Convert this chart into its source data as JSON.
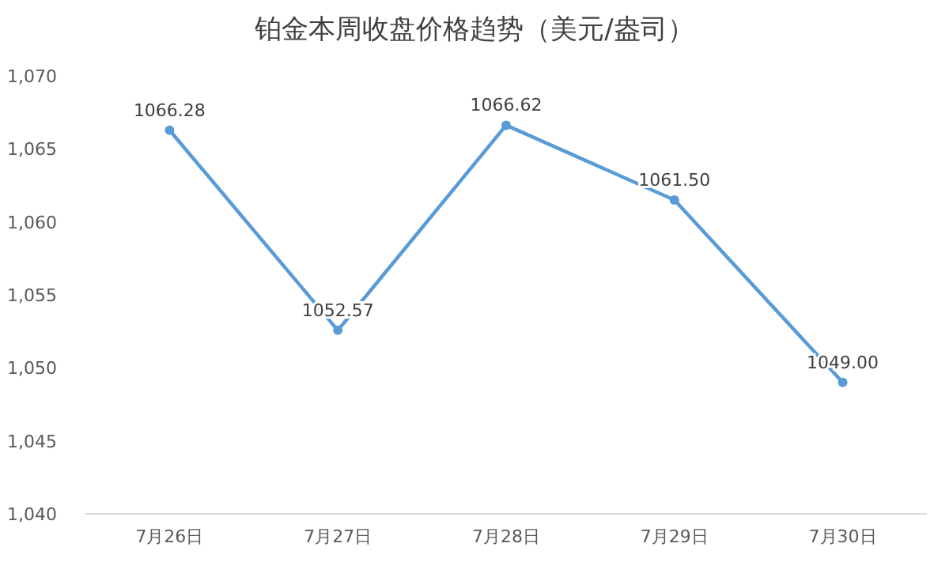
{
  "chart_data": {
    "type": "line",
    "title": "铂金本周收盘价格趋势（美元/盎司）",
    "categories": [
      "7月26日",
      "7月27日",
      "7月28日",
      "7月29日",
      "7月30日"
    ],
    "values": [
      1066.28,
      1052.57,
      1066.62,
      1061.5,
      1049.0
    ],
    "value_labels": [
      "1066.28",
      "1052.57",
      "1066.62",
      "1061.50",
      "1049.00"
    ],
    "color": "#5b9bd5",
    "marker": "circle",
    "ylim": [
      1040,
      1070
    ],
    "yticks": [
      {
        "value": 1040,
        "label": "1,040"
      },
      {
        "value": 1045,
        "label": "1,045"
      },
      {
        "value": 1050,
        "label": "1,050"
      },
      {
        "value": 1055,
        "label": "1,055"
      },
      {
        "value": 1060,
        "label": "1,060"
      },
      {
        "value": 1065,
        "label": "1,065"
      },
      {
        "value": 1070,
        "label": "1,070"
      }
    ]
  }
}
